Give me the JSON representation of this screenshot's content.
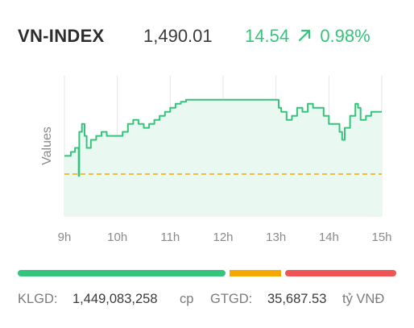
{
  "header": {
    "index_name": "VN-INDEX",
    "index_value": "1,490.01",
    "change_points": "14.54",
    "change_percent": "0.98%",
    "change_direction_icon": "arrow-up-right-icon"
  },
  "colors": {
    "up": "#35c47c",
    "reference": "#f5a800",
    "down": "#f05454",
    "grid": "#e6e6e6",
    "fill": "#e9f8f0",
    "text": "#3a3a3a",
    "muted": "#7b7b7b"
  },
  "breadth_bar": {
    "advancing_fraction": 0.56,
    "unchanged_fraction": 0.14,
    "declining_fraction": 0.3
  },
  "footer": {
    "volume_label": "KLGD:",
    "volume_value": "1,449,083,258",
    "volume_unit": "cp",
    "value_label": "GTGD:",
    "value_value": "35,687.53",
    "value_unit": "tỷ VNĐ"
  },
  "chart_data": {
    "type": "area",
    "title": "",
    "xlabel": "",
    "ylabel": "Values",
    "x_ticks": [
      "9h",
      "10h",
      "11h",
      "12h",
      "13h",
      "14h",
      "15h"
    ],
    "x_tick_hours": [
      9,
      10,
      11,
      12,
      13,
      14,
      15
    ],
    "xlim": [
      9,
      15.0
    ],
    "ylim": [
      1465,
      1500
    ],
    "grid": true,
    "reference_value": 1475.47,
    "series": [
      {
        "x": [
          9.0,
          9.12,
          9.2,
          9.25,
          9.27,
          9.28,
          9.33,
          9.38,
          9.42,
          9.5,
          9.55,
          9.6,
          9.7,
          9.8,
          9.9,
          10.0,
          10.1,
          10.2,
          10.3,
          10.4,
          10.5,
          10.6,
          10.7,
          10.8,
          10.9,
          11.0,
          11.1,
          11.2,
          11.3,
          11.5,
          11.7,
          11.9,
          12.0,
          13.0,
          13.05,
          13.1,
          13.2,
          13.3,
          13.4,
          13.5,
          13.6,
          13.7,
          13.8,
          13.9,
          14.0,
          14.1,
          14.2,
          14.25,
          14.3,
          14.4,
          14.5,
          14.55,
          14.6,
          14.7,
          14.8,
          14.9,
          15.0
        ],
        "y": [
          1480,
          1481,
          1482,
          1482,
          1475,
          1486,
          1488,
          1485,
          1482,
          1484,
          1484,
          1485,
          1486,
          1485,
          1485,
          1485,
          1486,
          1488,
          1489,
          1488,
          1487,
          1488,
          1489,
          1490,
          1491,
          1492,
          1493,
          1493.5,
          1494,
          1494,
          1494,
          1494,
          1494,
          1494,
          1492,
          1491,
          1489,
          1490,
          1492,
          1491,
          1493,
          1492,
          1492,
          1490,
          1488,
          1488,
          1486,
          1484,
          1487,
          1490,
          1493,
          1492,
          1489,
          1490,
          1491,
          1491,
          1491
        ]
      }
    ]
  }
}
